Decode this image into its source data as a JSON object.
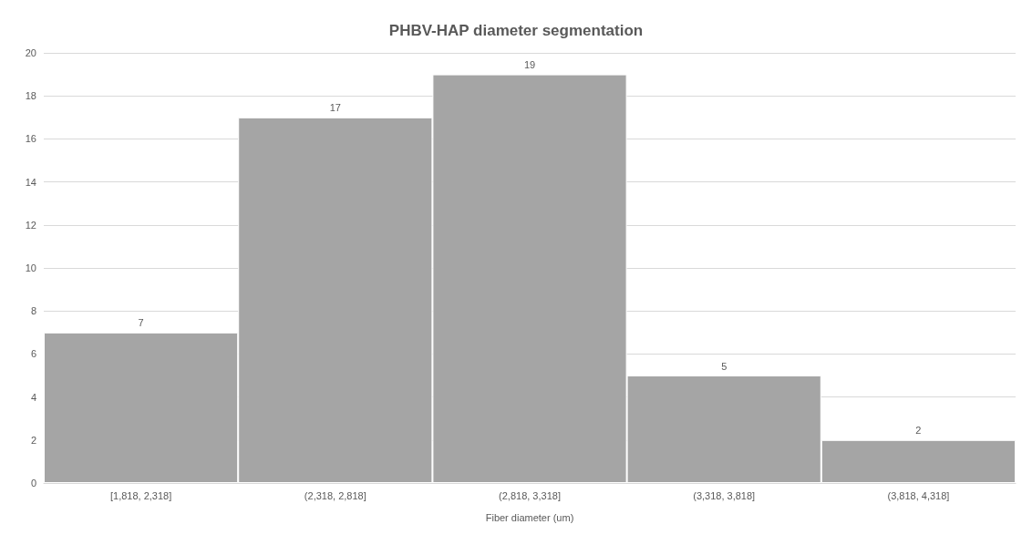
{
  "chart_data": {
    "type": "bar",
    "title": "PHBV-HAP diameter segmentation",
    "xlabel": "Fiber diameter (um)",
    "categories": [
      "[1,818, 2,318]",
      "(2,318, 2,818]",
      "(2,818, 3,318]",
      "(3,318, 3,818]",
      "(3,818, 4,318]"
    ],
    "values": [
      7,
      17,
      19,
      5,
      2
    ],
    "color": "#a5a5a5",
    "data_labels": true,
    "ylim": [
      0,
      20
    ],
    "yticks": [
      0,
      2,
      4,
      6,
      8,
      10,
      12,
      14,
      16,
      18,
      20
    ],
    "grid": "y"
  }
}
